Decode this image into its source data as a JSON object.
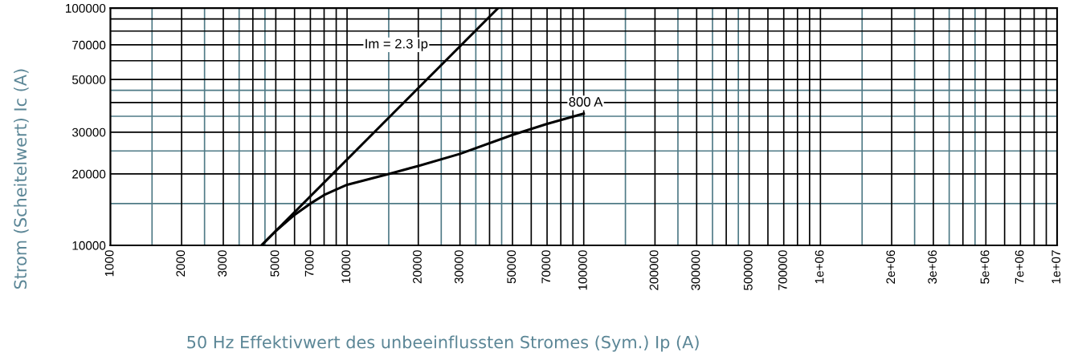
{
  "chart_data": {
    "type": "line",
    "xlabel": "50 Hz Effektivwert des unbeeinflussten Stromes (Sym.) Ip (A)",
    "ylabel": "Strom (Scheitelwert) Ic (A)",
    "log": "xy",
    "grid": true,
    "legend": false,
    "marker": "none",
    "line_style": "solid",
    "xlim": [
      1000,
      10000000
    ],
    "ylim": [
      10000,
      100000
    ],
    "xticks": [
      1000,
      2000,
      3000,
      {
        "value": 4000,
        "label": null
      },
      5000,
      {
        "value": 6000,
        "label": null
      },
      7000,
      {
        "value": 8000,
        "label": null
      },
      {
        "value": 9000,
        "label": null
      },
      10000,
      20000,
      30000,
      {
        "value": 40000,
        "label": null
      },
      50000,
      {
        "value": 60000,
        "label": null
      },
      70000,
      {
        "value": 80000,
        "label": null
      },
      {
        "value": 90000,
        "label": null
      },
      100000,
      200000,
      300000,
      {
        "value": 400000,
        "label": null
      },
      500000,
      {
        "value": 600000,
        "label": null
      },
      700000,
      {
        "value": 800000,
        "label": null
      },
      {
        "value": 900000,
        "label": null
      },
      {
        "value": 1000000,
        "label": "1e+06"
      },
      {
        "value": 2000000,
        "label": "2e+06"
      },
      {
        "value": 3000000,
        "label": "3e+06"
      },
      {
        "value": 4000000,
        "label": null
      },
      {
        "value": 5000000,
        "label": "5e+06"
      },
      {
        "value": 6000000,
        "label": null
      },
      {
        "value": 7000000,
        "label": "7e+06"
      },
      {
        "value": 8000000,
        "label": null
      },
      {
        "value": 9000000,
        "label": null
      },
      {
        "value": 10000000,
        "label": "1e+07"
      }
    ],
    "yticks": [
      10000,
      20000,
      30000,
      {
        "value": 40000,
        "label": null
      },
      50000,
      {
        "value": 60000,
        "label": null
      },
      70000,
      {
        "value": 80000,
        "label": null
      },
      {
        "value": 90000,
        "label": null
      },
      100000
    ],
    "series": [
      {
        "name": "Im = 2.3 Ip",
        "color": "#000000",
        "x": [
          4348,
          43478
        ],
        "values": [
          10000,
          100000
        ]
      },
      {
        "name": "800 A",
        "color": "#000000",
        "x": [
          4348,
          5000,
          6000,
          7000,
          8000,
          9000,
          10000,
          15000,
          20000,
          30000,
          50000,
          70000,
          100000
        ],
        "values": [
          10000,
          11500,
          13450,
          15000,
          16300,
          17200,
          18000,
          20000,
          21600,
          24300,
          29200,
          32500,
          35900
        ]
      }
    ],
    "ref_lines": [
      {
        "axis": "x",
        "value": 1500,
        "color": "#4f7a86"
      },
      {
        "axis": "x",
        "value": 2500,
        "color": "#4f7a86"
      },
      {
        "axis": "x",
        "value": 3500,
        "color": "#4f7a86"
      },
      {
        "axis": "x",
        "value": 4500,
        "color": "#4f7a86"
      },
      {
        "axis": "x",
        "value": 15000,
        "color": "#4f7a86"
      },
      {
        "axis": "x",
        "value": 25000,
        "color": "#4f7a86"
      },
      {
        "axis": "x",
        "value": 35000,
        "color": "#4f7a86"
      },
      {
        "axis": "x",
        "value": 45000,
        "color": "#4f7a86"
      },
      {
        "axis": "x",
        "value": 150000,
        "color": "#4f7a86"
      },
      {
        "axis": "x",
        "value": 250000,
        "color": "#4f7a86"
      },
      {
        "axis": "x",
        "value": 350000,
        "color": "#4f7a86"
      },
      {
        "axis": "x",
        "value": 450000,
        "color": "#4f7a86"
      },
      {
        "axis": "x",
        "value": 1500000,
        "color": "#4f7a86"
      },
      {
        "axis": "x",
        "value": 2500000,
        "color": "#4f7a86"
      },
      {
        "axis": "x",
        "value": 3500000,
        "color": "#4f7a86"
      },
      {
        "axis": "x",
        "value": 4500000,
        "color": "#4f7a86"
      },
      {
        "axis": "y",
        "value": 15000,
        "color": "#4f7a86"
      },
      {
        "axis": "y",
        "value": 25000,
        "color": "#4f7a86"
      },
      {
        "axis": "y",
        "value": 35000,
        "color": "#4f7a86"
      },
      {
        "axis": "y",
        "value": 45000,
        "color": "#4f7a86"
      }
    ]
  }
}
